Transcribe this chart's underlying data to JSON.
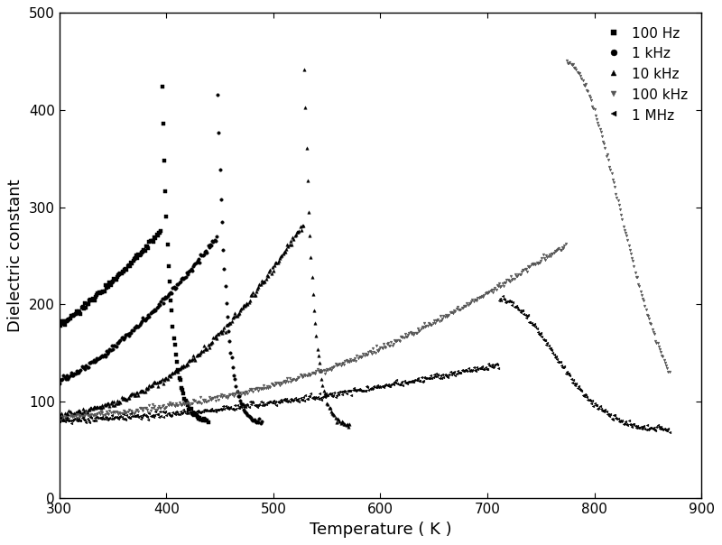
{
  "title": "",
  "xlabel": "Temperature ( K )",
  "ylabel": "Dielectric constant",
  "xlim": [
    300,
    900
  ],
  "ylim": [
    0,
    500
  ],
  "xticks": [
    300,
    400,
    500,
    600,
    700,
    800,
    900
  ],
  "yticks": [
    0,
    100,
    200,
    300,
    400,
    500
  ],
  "background_color": "#ffffff",
  "series": [
    {
      "label": "100 Hz",
      "marker": "s",
      "color": "#000000",
      "markersize": 2.5,
      "step": 1,
      "peak_T": 395,
      "peak_val": 470,
      "base_val": 78,
      "rise_sharpness": 0.008,
      "T_start": 300,
      "T_end": 440,
      "fall_steep": true
    },
    {
      "label": "1 kHz",
      "marker": "o",
      "color": "#000000",
      "markersize": 2.5,
      "step": 1,
      "peak_T": 447,
      "peak_val": 460,
      "base_val": 76,
      "rise_sharpness": 0.007,
      "T_start": 300,
      "T_end": 490,
      "fall_steep": true
    },
    {
      "label": "10 kHz",
      "marker": "^",
      "color": "#000000",
      "markersize": 2.5,
      "step": 1,
      "peak_T": 528,
      "peak_val": 492,
      "base_val": 74,
      "rise_sharpness": 0.006,
      "T_start": 300,
      "T_end": 572,
      "fall_steep": true
    },
    {
      "label": "100 kHz",
      "marker": "v",
      "color": "#555555",
      "markersize": 2.0,
      "step": 1,
      "peak_T": 773,
      "peak_val": 450,
      "base_val": 72,
      "rise_sharpness": 0.002,
      "T_start": 300,
      "T_end": 871,
      "fall_steep": false
    },
    {
      "label": "1 MHz",
      "marker": "<",
      "color": "#000000",
      "markersize": 2.0,
      "step": 1,
      "peak_T": 710,
      "peak_val": 205,
      "base_val": 70,
      "rise_sharpness": 0.0018,
      "T_start": 300,
      "T_end": 871,
      "fall_steep": false
    }
  ]
}
